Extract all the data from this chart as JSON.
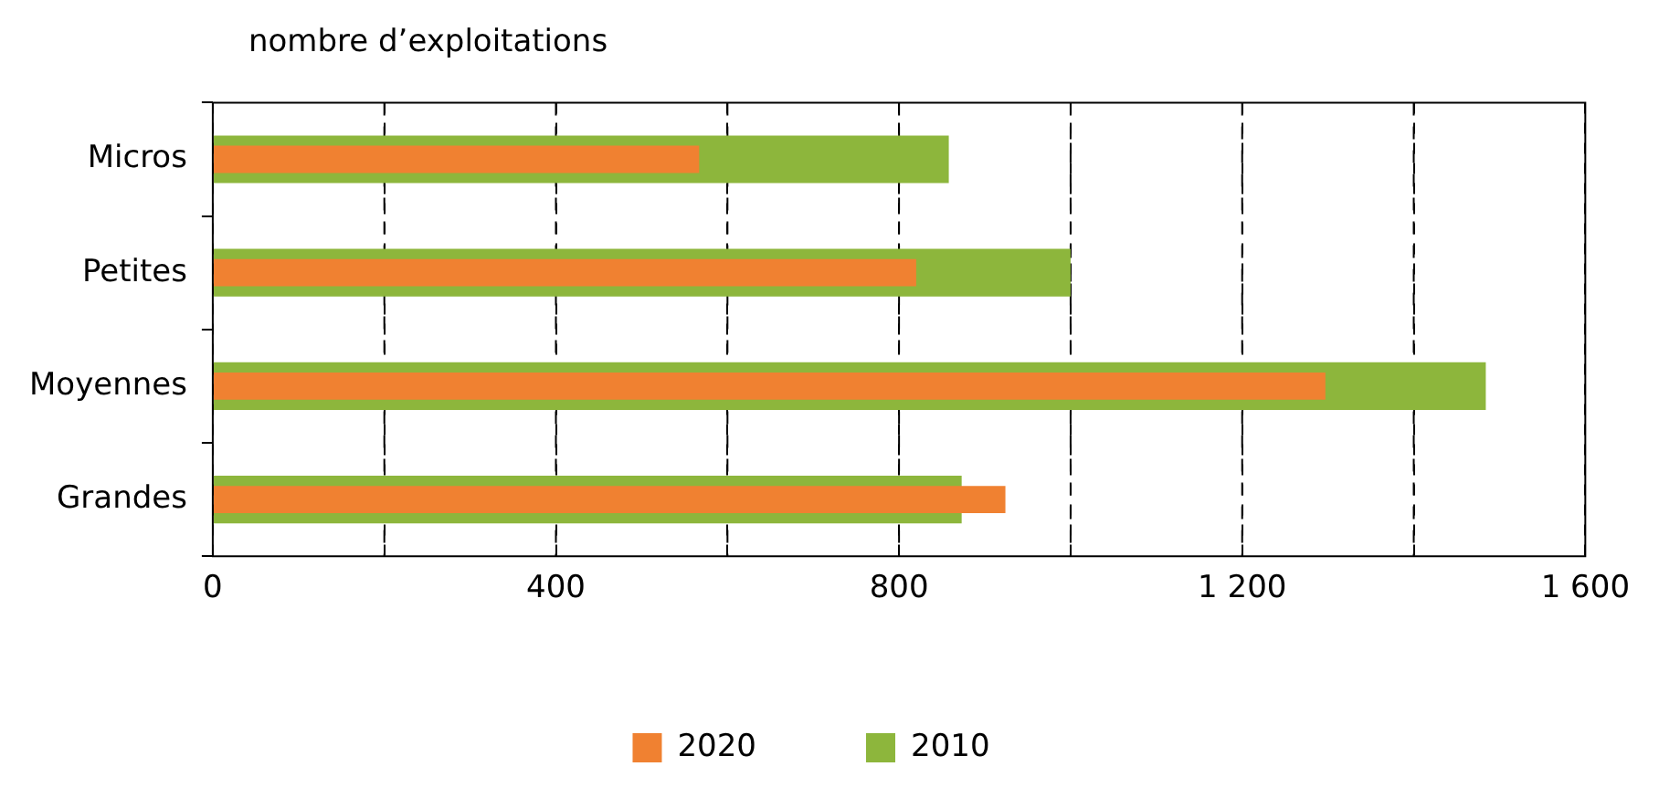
{
  "chart_data": {
    "type": "bar",
    "orientation": "horizontal",
    "xlabel": "nombre d’exploitations",
    "categories": [
      "Micros",
      "Petites",
      "Moyennes",
      "Grandes"
    ],
    "series": [
      {
        "name": "2020",
        "color": "#f08131",
        "values": [
          567,
          820,
          1297,
          924
        ]
      },
      {
        "name": "2010",
        "color": "#8db63c",
        "values": [
          858,
          1000,
          1484,
          873
        ]
      }
    ],
    "xlim": [
      0,
      1600
    ],
    "xticks": [
      0,
      {
        "value": 200,
        "label": null
      },
      400,
      {
        "value": 600,
        "label": null
      },
      800,
      {
        "value": 1000,
        "label": null
      },
      {
        "value": 1200,
        "label": "1 200"
      },
      {
        "value": 1400,
        "label": null
      },
      {
        "value": 1600,
        "label": "1 600"
      }
    ],
    "grid": "x",
    "legend": "bottom"
  }
}
